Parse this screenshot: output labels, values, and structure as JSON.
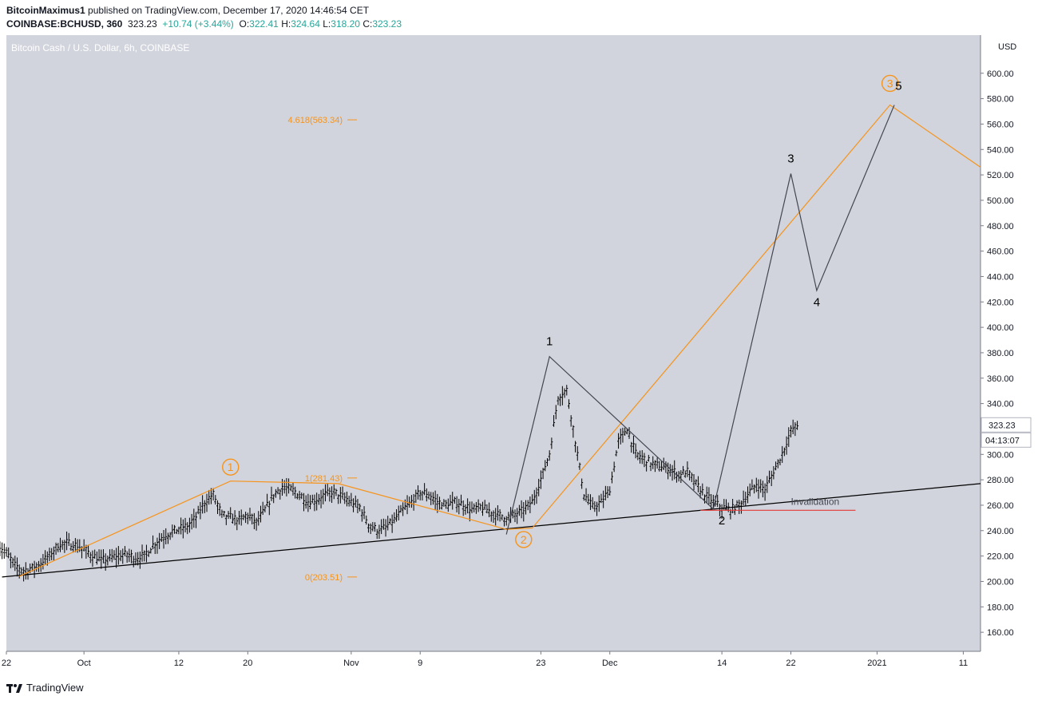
{
  "header": {
    "author": "BitcoinMaximus1",
    "published_text": "published on TradingView.com, December 17, 2020 14:46:54 CET",
    "symbol": "COINBASE:BCHUSD, 360",
    "last": "323.23",
    "change": "+10.74 (+3.44%)",
    "open_label": "O:",
    "open": "322.41",
    "high_label": "H:",
    "high": "324.64",
    "low_label": "L:",
    "low": "318.20",
    "close_label": "C:",
    "close": "323.23"
  },
  "footer": {
    "brand": "TradingView"
  },
  "colors": {
    "bg": "#d1d4dc",
    "orange": "#f7931a",
    "red": "#e53935",
    "text": "#131722"
  },
  "chart_data": {
    "type": "line",
    "title": "Bitcoin Cash / U.S. Dollar, 6h, COINBASE",
    "currency": "USD",
    "ylim": [
      145,
      630
    ],
    "y_ticks": [
      160,
      180,
      200,
      220,
      240,
      260,
      280,
      300,
      320,
      340,
      360,
      380,
      400,
      420,
      440,
      460,
      480,
      500,
      520,
      540,
      560,
      580,
      600
    ],
    "y_tick_labels": [
      "160.00",
      "180.00",
      "200.00",
      "220.00",
      "240.00",
      "260.00",
      "280.00",
      "300.00",
      "320.00",
      "340.00",
      "360.00",
      "380.00",
      "400.00",
      "420.00",
      "440.00",
      "460.00",
      "480.00",
      "500.00",
      "520.00",
      "540.00",
      "560.00",
      "580.00",
      "600.00"
    ],
    "x_range_days": [
      0,
      113
    ],
    "x_ticks": [
      {
        "label": "22",
        "day": 0
      },
      {
        "label": "Oct",
        "day": 9
      },
      {
        "label": "12",
        "day": 20
      },
      {
        "label": "20",
        "day": 28
      },
      {
        "label": "Nov",
        "day": 40
      },
      {
        "label": "9",
        "day": 48
      },
      {
        "label": "23",
        "day": 62
      },
      {
        "label": "Dec",
        "day": 70
      },
      {
        "label": "14",
        "day": 83
      },
      {
        "label": "22",
        "day": 91
      },
      {
        "label": "2021",
        "day": 101
      },
      {
        "label": "11",
        "day": 111
      }
    ],
    "last_price": {
      "label": "323.23",
      "value": 323.23
    },
    "countdown": "04:13:07",
    "price_series": [
      [
        -1,
        228
      ],
      [
        0,
        222
      ],
      [
        1,
        212
      ],
      [
        2,
        208
      ],
      [
        3,
        210
      ],
      [
        4,
        214
      ],
      [
        5,
        220
      ],
      [
        6,
        228
      ],
      [
        7,
        230
      ],
      [
        8,
        228
      ],
      [
        9,
        225
      ],
      [
        10,
        220
      ],
      [
        11,
        216
      ],
      [
        12,
        218
      ],
      [
        13,
        220
      ],
      [
        14,
        221
      ],
      [
        15,
        218
      ],
      [
        16,
        220
      ],
      [
        17,
        228
      ],
      [
        18,
        234
      ],
      [
        19,
        238
      ],
      [
        20,
        241
      ],
      [
        21,
        243
      ],
      [
        22,
        250
      ],
      [
        23,
        262
      ],
      [
        24,
        268
      ],
      [
        25,
        252
      ],
      [
        26,
        250
      ],
      [
        27,
        248
      ],
      [
        28,
        252
      ],
      [
        29,
        246
      ],
      [
        30,
        256
      ],
      [
        31,
        268
      ],
      [
        32,
        274
      ],
      [
        33,
        272
      ],
      [
        34,
        268
      ],
      [
        35,
        262
      ],
      [
        36,
        264
      ],
      [
        37,
        268
      ],
      [
        38,
        270
      ],
      [
        39,
        266
      ],
      [
        40,
        262
      ],
      [
        41,
        258
      ],
      [
        42,
        245
      ],
      [
        43,
        240
      ],
      [
        44,
        242
      ],
      [
        45,
        248
      ],
      [
        46,
        256
      ],
      [
        47,
        262
      ],
      [
        48,
        270
      ],
      [
        49,
        268
      ],
      [
        50,
        262
      ],
      [
        51,
        260
      ],
      [
        52,
        262
      ],
      [
        53,
        260
      ],
      [
        54,
        256
      ],
      [
        55,
        258
      ],
      [
        56,
        255
      ],
      [
        57,
        252
      ],
      [
        58,
        250
      ],
      [
        59,
        252
      ],
      [
        60,
        256
      ],
      [
        61,
        262
      ],
      [
        62,
        280
      ],
      [
        63,
        300
      ],
      [
        64,
        345
      ],
      [
        65,
        350
      ],
      [
        66,
        310
      ],
      [
        67,
        268
      ],
      [
        68,
        258
      ],
      [
        69,
        262
      ],
      [
        70,
        272
      ],
      [
        71,
        310
      ],
      [
        72,
        320
      ],
      [
        73,
        300
      ],
      [
        74,
        296
      ],
      [
        75,
        292
      ],
      [
        76,
        290
      ],
      [
        77,
        288
      ],
      [
        78,
        284
      ],
      [
        79,
        286
      ],
      [
        80,
        276
      ],
      [
        81,
        268
      ],
      [
        82,
        262
      ],
      [
        83,
        258
      ],
      [
        84,
        256
      ],
      [
        85,
        260
      ],
      [
        86,
        268
      ],
      [
        87,
        276
      ],
      [
        88,
        272
      ],
      [
        89,
        286
      ],
      [
        90,
        300
      ],
      [
        91,
        318
      ],
      [
        92,
        323.23
      ]
    ],
    "fib_levels": [
      {
        "label": "4.618(563.34)",
        "value": 563.34
      },
      {
        "label": "1(281.43)",
        "value": 281.43
      },
      {
        "label": "0(203.51)",
        "value": 203.51
      }
    ],
    "support_line": [
      [
        -0.5,
        203.5
      ],
      [
        113,
        277
      ]
    ],
    "invalidation": {
      "label": "Invalidation",
      "value": 256,
      "x": [
        80.5,
        98.5
      ]
    },
    "orange_wave": [
      [
        1.5,
        204
      ],
      [
        26,
        279
      ],
      [
        38.5,
        277
      ],
      [
        58,
        241
      ],
      [
        61,
        242
      ],
      [
        102.5,
        575
      ],
      [
        113,
        526
      ]
    ],
    "black_wave": [
      [
        58,
        237
      ],
      [
        63,
        377
      ],
      [
        82,
        257
      ],
      [
        91,
        521
      ],
      [
        94,
        429
      ],
      [
        103,
        575
      ]
    ],
    "orange_labels": [
      {
        "text": "1",
        "x": 26,
        "y": 290
      },
      {
        "text": "2",
        "x": 60,
        "y": 233
      },
      {
        "text": "3",
        "x": 102.5,
        "y": 592
      }
    ],
    "black_labels": [
      {
        "text": "1",
        "x": 63,
        "y": 389
      },
      {
        "text": "2",
        "x": 83,
        "y": 248
      },
      {
        "text": "3",
        "x": 91,
        "y": 533
      },
      {
        "text": "4",
        "x": 94,
        "y": 420
      },
      {
        "text": "5",
        "x": 103.5,
        "y": 590
      }
    ]
  }
}
